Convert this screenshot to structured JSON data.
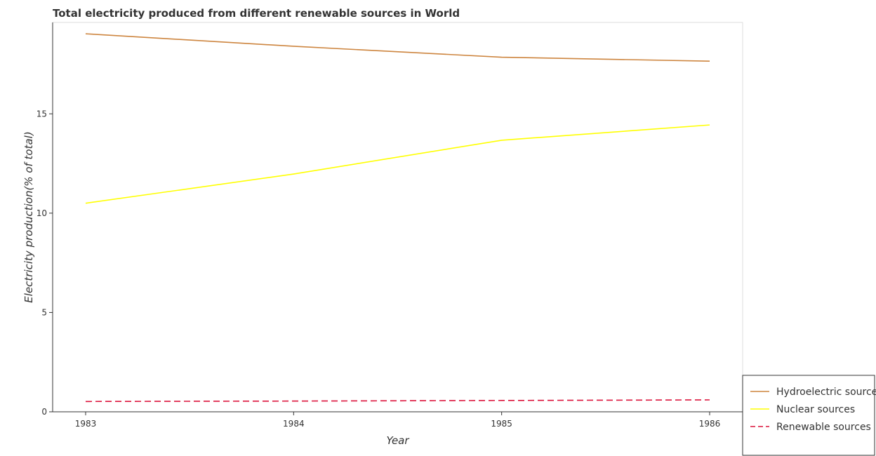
{
  "chart_data": {
    "type": "line",
    "title": "Total electricity produced from different renewable sources in World",
    "xlabel": "Year",
    "ylabel": "Electricity production(% of total)",
    "x": [
      "1983",
      "1984",
      "1985",
      "1986"
    ],
    "yticks": [
      0,
      5,
      10,
      15
    ],
    "ylim": [
      0,
      19.6
    ],
    "grid": false,
    "legend_position": "bottom-right",
    "series": [
      {
        "name": "Hydroelectric sources",
        "color": "#cd853f",
        "dash": "solid",
        "values": [
          19.03,
          18.4,
          17.85,
          17.65
        ]
      },
      {
        "name": "Nuclear sources",
        "color": "#ffff00",
        "dash": "solid",
        "values": [
          10.5,
          11.97,
          13.67,
          14.44
        ]
      },
      {
        "name": "Renewable sources",
        "color": "#dc143c",
        "dash": "dashed",
        "values": [
          0.52,
          0.54,
          0.57,
          0.6
        ]
      }
    ]
  }
}
